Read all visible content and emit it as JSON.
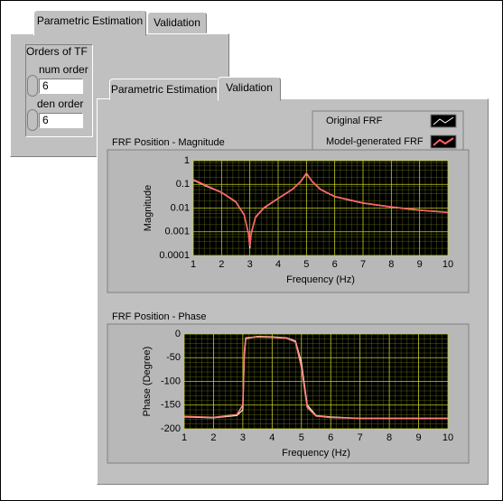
{
  "back_panel": {
    "tabs": [
      "Parametric Estimation",
      "Validation"
    ],
    "group_label": "Orders of TF",
    "num_order": {
      "label": "num order",
      "value": 6
    },
    "den_order": {
      "label": "den order",
      "value": 6
    }
  },
  "front_panel": {
    "tabs": [
      "Parametric Estimation",
      "Validation"
    ]
  },
  "chart_data": [
    {
      "type": "line",
      "title": "FRF Position - Magnitude",
      "x_label": "Frequency (Hz)",
      "y_label": "Magnitude",
      "log_y": true,
      "grid": true,
      "background": "#000000",
      "grid_color": "#8a9a1a",
      "xlim": [
        1,
        10
      ],
      "xticks": [
        1,
        2,
        3,
        4,
        5,
        6,
        7,
        8,
        9,
        10
      ],
      "ylim": [
        0.0001,
        1
      ],
      "yticks": [
        1,
        0.1,
        0.01,
        0.001,
        0.0001
      ],
      "x": [
        1,
        1.5,
        2,
        2.5,
        2.8,
        2.95,
        3,
        3.05,
        3.2,
        3.5,
        4,
        4.5,
        4.8,
        5,
        5.2,
        5.5,
        6,
        7,
        8,
        9,
        10
      ],
      "series": [
        {
          "name": "Original FRF",
          "color": "#ffffff",
          "values": [
            0.15,
            0.08,
            0.045,
            0.018,
            0.005,
            0.0008,
            0.0002,
            0.0008,
            0.004,
            0.01,
            0.025,
            0.06,
            0.13,
            0.28,
            0.13,
            0.06,
            0.03,
            0.016,
            0.011,
            0.008,
            0.0065
          ]
        },
        {
          "name": "Model-generated FRF",
          "color": "#ff6060",
          "values": [
            0.16,
            0.085,
            0.046,
            0.019,
            0.0052,
            0.0009,
            0.00025,
            0.0009,
            0.0042,
            0.0105,
            0.026,
            0.062,
            0.135,
            0.3,
            0.135,
            0.062,
            0.031,
            0.0165,
            0.0112,
            0.0082,
            0.0066
          ]
        }
      ]
    },
    {
      "type": "line",
      "title": "FRF Position - Phase",
      "x_label": "Frequency (Hz)",
      "y_label": "Phase (Degree)",
      "log_y": false,
      "grid": true,
      "background": "#000000",
      "grid_color": "#8a9a1a",
      "xlim": [
        1,
        10
      ],
      "xticks": [
        1,
        2,
        3,
        4,
        5,
        6,
        7,
        8,
        9,
        10
      ],
      "ylim": [
        -200,
        0
      ],
      "yticks": [
        0,
        -50,
        -100,
        -150,
        -200
      ],
      "x": [
        1,
        2,
        2.8,
        3,
        3.05,
        3.1,
        3.5,
        4,
        4.5,
        4.8,
        5,
        5.2,
        5.5,
        6,
        7,
        8,
        9,
        10
      ],
      "series": [
        {
          "color": "#ffffd0",
          "values": [
            -175,
            -177,
            -172,
            -160,
            -50,
            -10,
            -5,
            -6,
            -8,
            -15,
            -60,
            -150,
            -172,
            -175,
            -178,
            -178,
            -178,
            -178
          ]
        },
        {
          "color": "#ff8080",
          "values": [
            -174,
            -176,
            -170,
            -150,
            -40,
            -8,
            -6,
            -7,
            -9,
            -17,
            -70,
            -155,
            -173,
            -176,
            -178,
            -178,
            -178,
            -178
          ]
        }
      ]
    }
  ]
}
